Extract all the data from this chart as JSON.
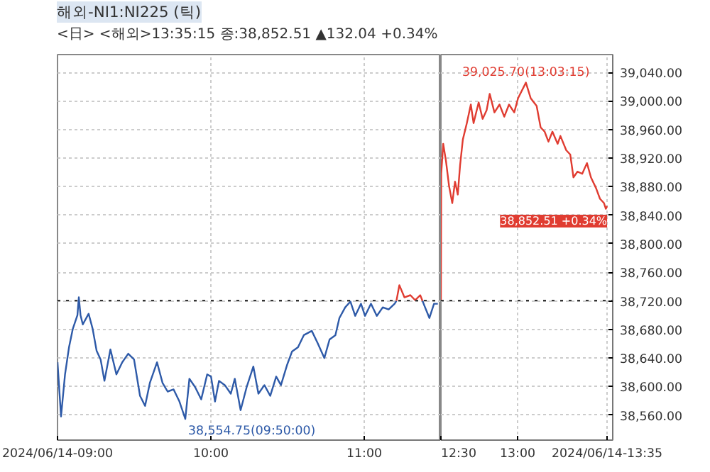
{
  "chart_data": [
    {
      "type": "line",
      "title": "해외-NI1:NI225 (틱)",
      "subtitle": "<日> <해외>13:35:15 종:38,852.51 ▲132.04 +0.34%",
      "xlim": [
        9,
        11.5
      ],
      "ylim": [
        38525,
        39065
      ],
      "tick_labels": "x",
      "xticks": [
        {
          "value": 9,
          "label": "2024/06/14-09:00"
        },
        {
          "value": 10,
          "label": "10:00"
        },
        {
          "value": 11,
          "label": "11:00"
        }
      ],
      "yticks": [
        38560,
        38600,
        38640,
        38680,
        38720,
        38760,
        38800,
        38840,
        38880,
        38920,
        38960,
        39000,
        39040
      ],
      "grid": true,
      "line_style": "solid",
      "series": [
        {
          "color": "#2e5aa8",
          "x": [
            9.0,
            9.023,
            9.049,
            9.075,
            9.1,
            9.13,
            9.139,
            9.15,
            9.165,
            9.203,
            9.229,
            9.255,
            9.281,
            9.306,
            9.345,
            9.384,
            9.422,
            9.461,
            9.499,
            9.538,
            9.571,
            9.602,
            9.649,
            9.685,
            9.718,
            9.757,
            9.795,
            9.8333,
            9.86,
            9.898,
            9.937,
            9.976,
            10.001,
            10.027,
            10.053,
            10.091,
            10.13,
            10.156,
            10.194,
            10.233,
            10.277,
            10.31,
            10.349,
            10.387,
            10.426,
            10.457,
            10.498,
            10.529,
            10.568,
            10.606,
            10.658,
            10.696,
            10.74,
            10.774,
            10.812,
            10.838,
            10.876,
            10.91,
            10.941,
            10.979,
            11.005,
            11.044,
            11.082,
            11.121,
            11.159,
            11.198,
            11.21,
            11.229,
            11.38,
            11.391,
            11.425,
            11.455,
            11.48
          ],
          "values": [
            38634,
            38558,
            38617,
            38655,
            38681,
            38700,
            38725,
            38700,
            38687,
            38702,
            38681,
            38650,
            38638,
            38608,
            38652,
            38617,
            38634,
            38646,
            38638,
            38587,
            38573,
            38605,
            38634,
            38605,
            38593,
            38596,
            38579,
            38554.75,
            38611,
            38599,
            38582,
            38617,
            38614,
            38579,
            38608,
            38602,
            38590,
            38611,
            38567,
            38599,
            38628,
            38590,
            38602,
            38587,
            38614,
            38602,
            38631,
            38649,
            38655,
            38672,
            38678,
            38661,
            38640,
            38666,
            38672,
            38696,
            38711,
            38719,
            38699,
            38716,
            38699,
            38716,
            38699,
            38711,
            38708,
            38716,
            38720,
            null,
            38720,
            38714,
            38696,
            38716,
            38716
          ]
        },
        {
          "color": "#e03c31",
          "x": [
            11.21,
            11.229,
            11.262,
            11.301,
            11.332,
            11.365,
            11.38
          ],
          "values": [
            38720,
            38742,
            38725,
            38728,
            38721,
            38728,
            38720
          ]
        }
      ],
      "ref_lines": [
        {
          "axis": "y",
          "value": 38720.47,
          "color": "#333333",
          "line_style": "dotted"
        }
      ],
      "annotations": [
        {
          "text": "38,554.75(09:50:00)",
          "x": 9.8333,
          "y": 38554.75
        }
      ]
    },
    {
      "type": "line",
      "xlim": [
        12.5,
        13.62
      ],
      "ylim": [
        38525,
        39065
      ],
      "xticks": [
        {
          "value": 12.5,
          "label": "12:30"
        },
        {
          "value": 13,
          "label": "13:00"
        },
        {
          "value": 13.5833,
          "label": "2024/06/14-13:35"
        }
      ],
      "yticks": [
        {
          "value": 38560,
          "label": "38,560.00"
        },
        {
          "value": 38600,
          "label": "38,600.00"
        },
        {
          "value": 38640,
          "label": "38,640.00"
        },
        {
          "value": 38680,
          "label": "38,680.00"
        },
        {
          "value": 38720,
          "label": "38,720.00"
        },
        {
          "value": 38760,
          "label": "38,760.00"
        },
        {
          "value": 38800,
          "label": "38,800.00"
        },
        {
          "value": 38840,
          "label": "38,840.00"
        },
        {
          "value": 38880,
          "label": "38,880.00"
        },
        {
          "value": 38920,
          "label": "38,920.00"
        },
        {
          "value": 38960,
          "label": "38,960.00"
        },
        {
          "value": 39000,
          "label": "39,000.00"
        },
        {
          "value": 39040,
          "label": "39,040.00"
        }
      ],
      "grid": true,
      "line_style": "solid",
      "series": [
        {
          "color": "#e03c31",
          "x": [
            12.5,
            12.502,
            12.515,
            12.533,
            12.553,
            12.574,
            12.592,
            12.61,
            12.625,
            12.643,
            12.669,
            12.695,
            12.713,
            12.746,
            12.772,
            12.798,
            12.818,
            12.849,
            12.882,
            12.913,
            12.944,
            12.978,
            13.003,
            13.054,
            13.085,
            13.124,
            13.15,
            13.176,
            13.201,
            13.227,
            13.261,
            13.279,
            13.317,
            13.343,
            13.364,
            13.39,
            13.421,
            13.452,
            13.478,
            13.511,
            13.537,
            13.563,
            13.575,
            13.5833
          ],
          "values": [
            38720,
            38898,
            38940,
            38916,
            38881,
            38857,
            38887,
            38869,
            38910,
            38946,
            38969,
            38995,
            38969,
            38998,
            38975,
            38987,
            39010,
            38984,
            38995,
            38978,
            38995,
            38984,
            39004,
            39025.7,
            39004,
            38993,
            38963,
            38957,
            38943,
            38957,
            38940,
            38951,
            38931,
            38925,
            38893,
            38901,
            38898,
            38913,
            38893,
            38878,
            38863,
            38857,
            38849,
            38852.51
          ]
        }
      ],
      "ref_lines": [
        {
          "axis": "y",
          "value": 38720.47,
          "color": "#333333",
          "line_style": "dotted"
        }
      ],
      "annotations": [
        {
          "text": "39,025.70(13:03:15)",
          "x": 13.054,
          "y": 39025.7
        },
        {
          "text": "38,852.51 +0.34%",
          "x": 13.5833,
          "y": 38852.51
        }
      ]
    }
  ]
}
